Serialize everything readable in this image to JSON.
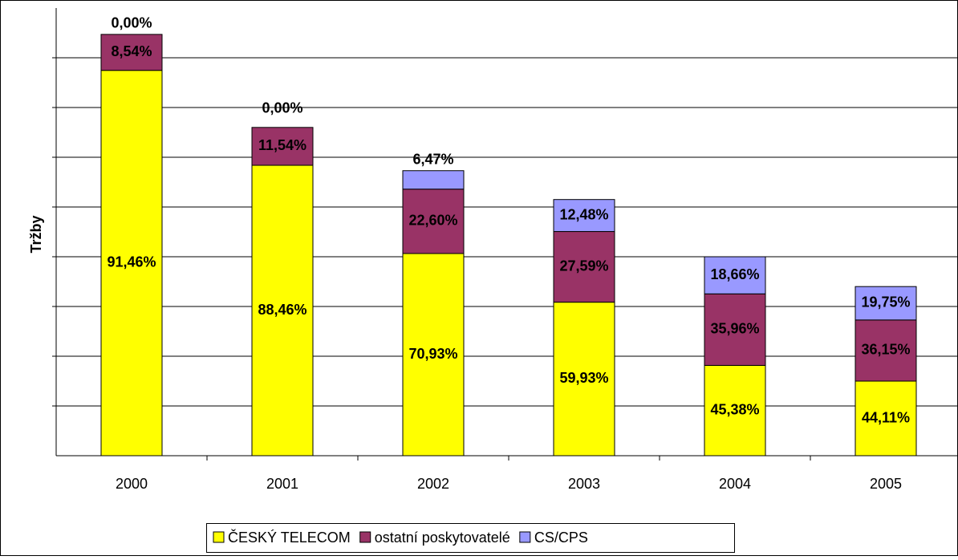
{
  "chart_data": {
    "type": "stacked_bar_percent",
    "y_label": "Tržby",
    "categories": [
      "2000",
      "2001",
      "2002",
      "2003",
      "2004",
      "2005"
    ],
    "totals": [
      8.47,
      6.6,
      5.73,
      5.15,
      4.0,
      3.4
    ],
    "series": [
      {
        "name": "ČESKÝ TELECOM",
        "color": "#ffff00",
        "values": [
          91.46,
          88.46,
          70.93,
          59.93,
          45.38,
          44.11
        ],
        "value_labels": [
          "91,46%",
          "88,46%",
          "70,93%",
          "59,93%",
          "45,38%",
          "44,11%"
        ]
      },
      {
        "name": "ostatní poskytovatelé",
        "color": "#993366",
        "values": [
          8.54,
          11.54,
          22.6,
          27.59,
          35.96,
          36.15
        ],
        "value_labels": [
          "8,54%",
          "11,54%",
          "22,60%",
          "27,59%",
          "35,96%",
          "36,15%"
        ]
      },
      {
        "name": "CS/CPS",
        "color": "#9999ff",
        "values": [
          0,
          0,
          6.47,
          12.48,
          18.66,
          19.75
        ],
        "value_labels": [
          "0,00%",
          "0,00%",
          "6,47%",
          "12,48%",
          "18,66%",
          "19,75%"
        ]
      }
    ],
    "ylim": [
      0,
      9
    ],
    "yticks": [
      1,
      2,
      3,
      4,
      5,
      6,
      7,
      8
    ],
    "grid": true
  }
}
